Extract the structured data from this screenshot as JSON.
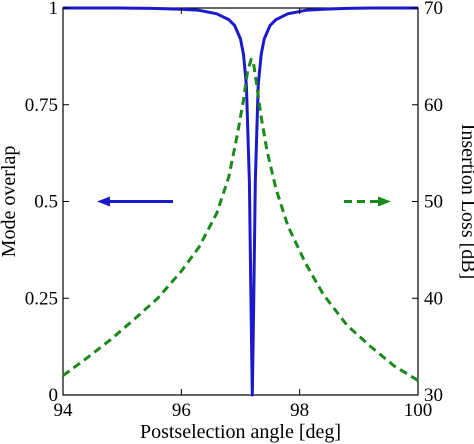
{
  "chart_data": {
    "type": "line",
    "xlabel": "Postselection angle [deg]",
    "ylabel_left": "Mode overlap",
    "ylabel_right": "Insertion Loss [dB]",
    "xlim": [
      94,
      100
    ],
    "ylim_left": [
      0,
      1
    ],
    "ylim_right": [
      30,
      70
    ],
    "x_ticks": [
      "94",
      "96",
      "98",
      "100"
    ],
    "y_ticks_left": [
      "0",
      "0.25",
      "0.5",
      "0.75",
      "1"
    ],
    "y_ticks_right": [
      "30",
      "40",
      "50",
      "60",
      "70"
    ],
    "grid": false,
    "series": [
      {
        "axis": "left",
        "color": "#1a1acc",
        "style": "solid",
        "arrow_direction": "left",
        "x": [
          94.0,
          94.5,
          95.0,
          95.5,
          96.0,
          96.3,
          96.6,
          96.8,
          96.9,
          97.0,
          97.05,
          97.1,
          97.15,
          97.18,
          97.2,
          97.22,
          97.25,
          97.3,
          97.35,
          97.4,
          97.5,
          97.6,
          97.8,
          98.1,
          98.4,
          98.8,
          99.2,
          99.6,
          100.0
        ],
        "values": [
          1.0,
          1.0,
          1.0,
          0.999,
          0.997,
          0.994,
          0.985,
          0.97,
          0.955,
          0.92,
          0.88,
          0.8,
          0.55,
          0.2,
          0.0,
          0.2,
          0.55,
          0.8,
          0.88,
          0.92,
          0.955,
          0.97,
          0.985,
          0.994,
          0.997,
          0.999,
          1.0,
          1.0,
          1.0
        ]
      },
      {
        "axis": "right",
        "color": "#1a8a1a",
        "style": "dashed",
        "arrow_direction": "right",
        "x": [
          94.0,
          94.4,
          94.8,
          95.2,
          95.6,
          96.0,
          96.3,
          96.6,
          96.8,
          96.95,
          97.05,
          97.12,
          97.18,
          97.22,
          97.28,
          97.35,
          97.45,
          97.6,
          97.8,
          98.1,
          98.4,
          98.8,
          99.2,
          99.6,
          100.0
        ],
        "values": [
          32.0,
          33.8,
          35.7,
          37.8,
          40.0,
          42.8,
          45.3,
          48.8,
          52.5,
          57.0,
          60.5,
          63.5,
          64.7,
          64.3,
          61.8,
          58.7,
          55.2,
          51.3,
          47.5,
          43.6,
          40.4,
          37.2,
          35.0,
          33.0,
          31.5
        ]
      }
    ]
  }
}
